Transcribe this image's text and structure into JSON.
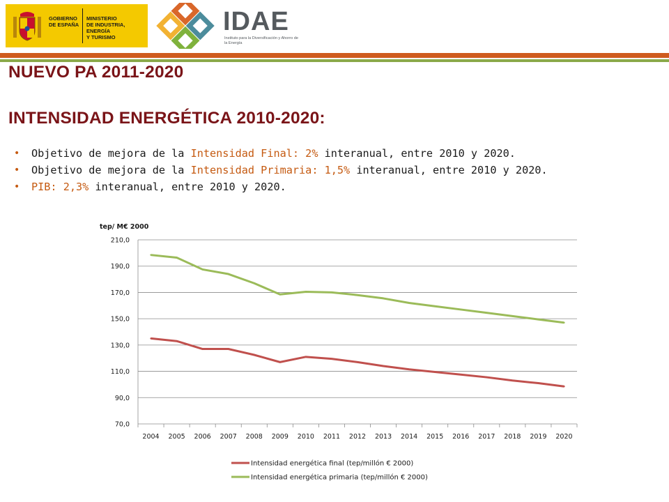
{
  "header": {
    "gov_text": "GOBIERNO\nDE ESPAÑA",
    "ministry_text": "MINISTERIO\nDE INDUSTRIA, ENERGÍA\nY TURISMO",
    "idae_word": "IDAE",
    "idae_subtitle": "Instituto para la Diversificación y Ahorro de la Energía"
  },
  "titles": {
    "title1": "NUEVO PA 2011-2020",
    "title2": "INTENSIDAD ENERGÉTICA 2010-2020:"
  },
  "bullets": [
    {
      "pre": "Objetivo de mejora de la ",
      "hl": "Intensidad Final: 2%",
      "post": " interanual, entre 2010 y 2020."
    },
    {
      "pre": "Objetivo de mejora de la ",
      "hl": "Intensidad Primaria: 1,5%",
      "post": " interanual, entre 2010 y 2020."
    },
    {
      "pre": "",
      "hl": "PIB: 2,3%",
      "post": " interanual, entre 2010 y 2020."
    }
  ],
  "colors": {
    "title": "#7a1418",
    "highlight": "#c55a11",
    "final_series": "#c0504d",
    "primary_series": "#9bbb59",
    "gridline": "#8c8c8c"
  },
  "chart_data": {
    "type": "line",
    "ylabel": "tep/ M€ 2000",
    "ylim": [
      70,
      210
    ],
    "yticks": [
      "210,0",
      "190,0",
      "170,0",
      "150,0",
      "130,0",
      "110,0",
      "90,0",
      "70,0"
    ],
    "ytick_values": [
      210,
      190,
      170,
      150,
      130,
      110,
      90,
      70
    ],
    "categories": [
      "2004",
      "2005",
      "2006",
      "2007",
      "2008",
      "2009",
      "2010",
      "2011",
      "2012",
      "2013",
      "2014",
      "2015",
      "2016",
      "2017",
      "2018",
      "2019",
      "2020"
    ],
    "grid": true,
    "legend": "bottom",
    "series": [
      {
        "name": "Intensidad energética final (tep/millón € 2000)",
        "color": "#c0504d",
        "values": [
          135.0,
          133.0,
          127.0,
          127.0,
          122.5,
          117.0,
          121.0,
          119.5,
          117.0,
          114.0,
          111.5,
          109.5,
          107.5,
          105.5,
          103.0,
          101.0,
          98.5
        ]
      },
      {
        "name": "Intensidad energética primaria (tep/millón € 2000)",
        "color": "#9bbb59",
        "values": [
          198.5,
          196.5,
          187.5,
          184.0,
          177.0,
          168.5,
          170.5,
          170.0,
          168.0,
          165.5,
          162.0,
          159.5,
          157.0,
          154.5,
          152.0,
          149.5,
          147.0
        ]
      }
    ]
  }
}
